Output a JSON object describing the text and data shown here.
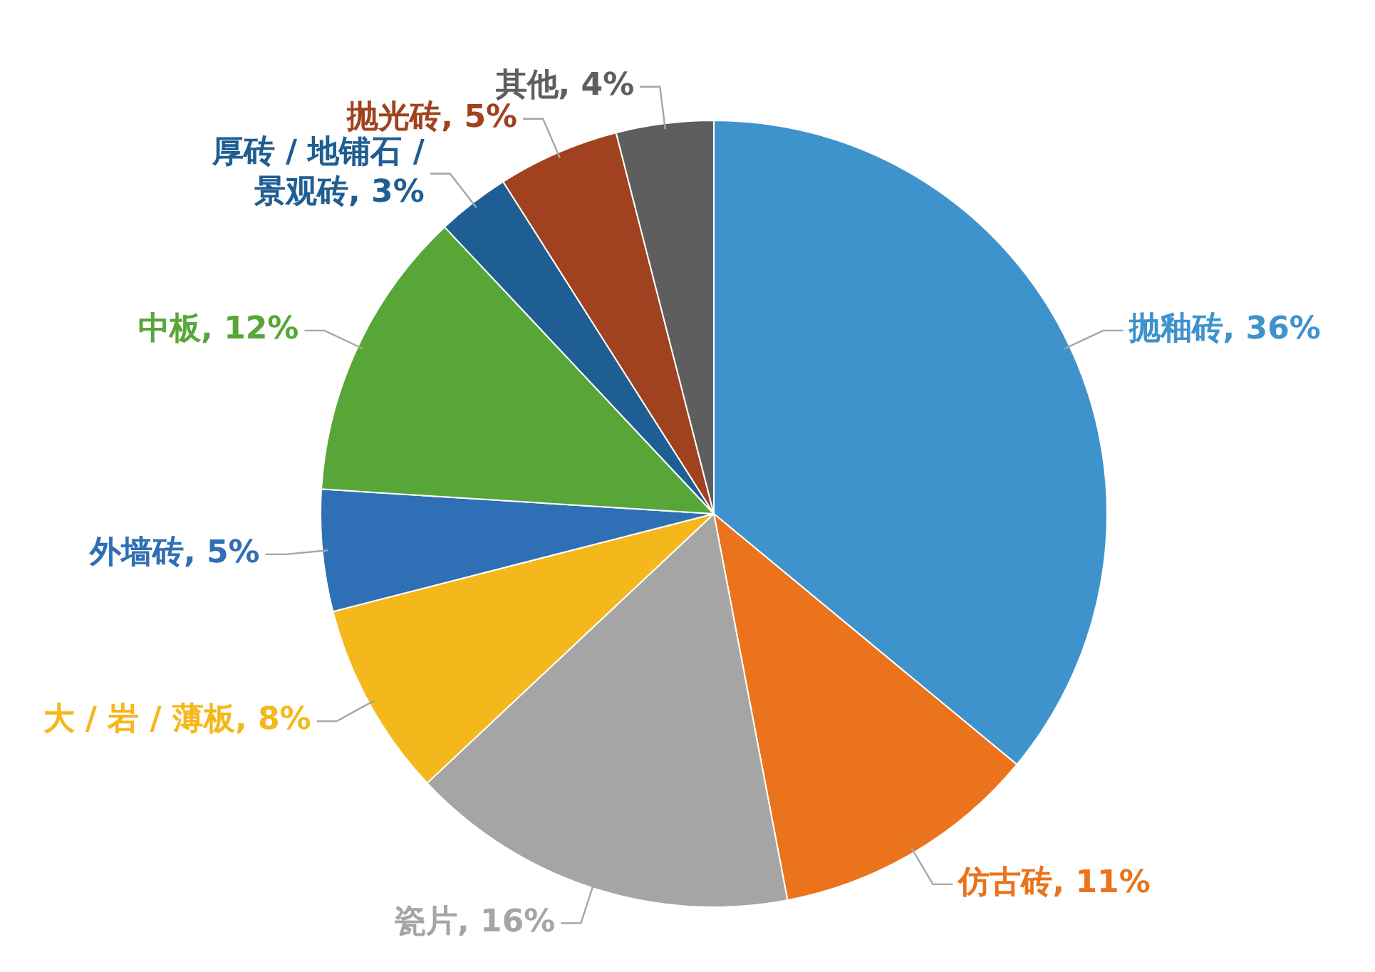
{
  "chart_data": {
    "type": "pie",
    "categories": [
      "抛釉砖",
      "仿古砖",
      "瓷片",
      "大 / 岩 / 薄板",
      "外墙砖",
      "中板",
      "厚砖 / 地铺石 / 景观砖",
      "抛光砖",
      "其他"
    ],
    "values": [
      36,
      11,
      16,
      8,
      5,
      12,
      3,
      5,
      4
    ],
    "value_labels": [
      "36%",
      "11%",
      "16%",
      "8%",
      "5%",
      "12%",
      "3%",
      "5%",
      "4%"
    ],
    "colors": [
      "#3f93cc",
      "#ea731c",
      "#a5a5a5",
      "#f4b81c",
      "#2f6fb5",
      "#58a637",
      "#1f5e93",
      "#a0421f",
      "#5e5e5e"
    ],
    "data_labels": true,
    "legend": false
  }
}
